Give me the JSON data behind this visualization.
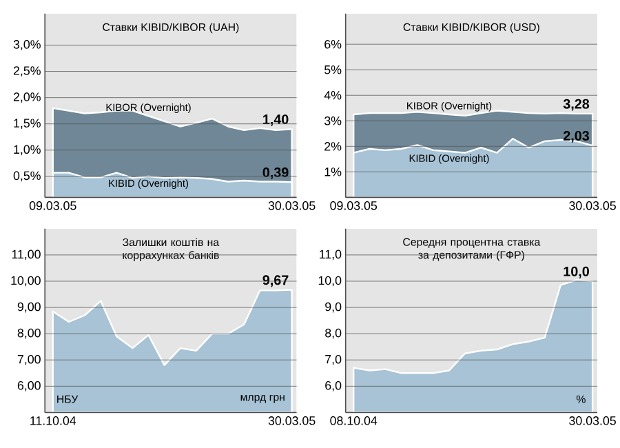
{
  "chart_data": [
    {
      "type": "area",
      "title": "Ставки KIBID/KIBOR (UAH)",
      "grid": "y",
      "categories": [
        "09.03.05",
        null,
        null,
        null,
        null,
        null,
        null,
        null,
        null,
        null,
        null,
        null,
        null,
        null,
        null,
        "30.03.05"
      ],
      "ylim": [
        0.1,
        3.6
      ],
      "yticks": [
        {
          "value": 0.5,
          "label": "0,5%"
        },
        {
          "value": 1.0,
          "label": "1,0%"
        },
        {
          "value": 1.5,
          "label": "1,5%"
        },
        {
          "value": 2.0,
          "label": "2,0%"
        },
        {
          "value": 2.5,
          "label": "2,5%"
        },
        {
          "value": 3.0,
          "label": "3,0%"
        }
      ],
      "series": [
        {
          "name": "KIBOR (Overnight)",
          "color": "#6f8796",
          "values": [
            1.8,
            1.75,
            1.7,
            1.72,
            1.75,
            1.75,
            1.65,
            1.55,
            1.45,
            1.52,
            1.6,
            1.45,
            1.38,
            1.42,
            1.38,
            1.4
          ],
          "value_labels": [
            null,
            null,
            null,
            null,
            null,
            null,
            null,
            null,
            null,
            null,
            null,
            null,
            null,
            null,
            null,
            "1,40"
          ]
        },
        {
          "name": "KIBID (Overnight)",
          "color": "#a7c3d5",
          "values": [
            0.57,
            0.57,
            0.48,
            0.48,
            0.57,
            0.47,
            0.5,
            0.47,
            0.48,
            0.47,
            0.45,
            0.4,
            0.42,
            0.4,
            0.4,
            0.39
          ],
          "value_labels": [
            null,
            null,
            null,
            null,
            null,
            null,
            null,
            null,
            null,
            null,
            null,
            null,
            null,
            null,
            null,
            "0,39"
          ]
        }
      ]
    },
    {
      "type": "area",
      "title": "Ставки KIBID/KIBOR (USD)",
      "grid": "y",
      "categories": [
        "09.03.05",
        null,
        null,
        null,
        null,
        null,
        null,
        null,
        null,
        null,
        null,
        null,
        null,
        null,
        null,
        "30.03.05"
      ],
      "ylim": [
        0,
        7.2
      ],
      "yticks": [
        {
          "value": 1,
          "label": "1%"
        },
        {
          "value": 2,
          "label": "2%"
        },
        {
          "value": 3,
          "label": "3%"
        },
        {
          "value": 4,
          "label": "4%"
        },
        {
          "value": 5,
          "label": "5%"
        },
        {
          "value": 6,
          "label": "6%"
        }
      ],
      "series": [
        {
          "name": "KIBOR (Overnight)",
          "color": "#6f8796",
          "values": [
            3.25,
            3.3,
            3.3,
            3.3,
            3.35,
            3.3,
            3.25,
            3.2,
            3.3,
            3.4,
            3.35,
            3.3,
            3.28,
            3.3,
            3.28,
            3.28
          ],
          "value_labels": [
            null,
            null,
            null,
            null,
            null,
            null,
            null,
            null,
            null,
            null,
            null,
            null,
            null,
            null,
            null,
            "3,28"
          ]
        },
        {
          "name": "KIBID (Overnight)",
          "color": "#a7c3d5",
          "values": [
            1.75,
            1.9,
            1.85,
            1.9,
            2.05,
            1.85,
            1.8,
            1.75,
            1.95,
            1.75,
            2.3,
            1.95,
            2.2,
            2.25,
            2.2,
            2.03
          ],
          "value_labels": [
            null,
            null,
            null,
            null,
            null,
            null,
            null,
            null,
            null,
            null,
            null,
            null,
            null,
            null,
            null,
            "2,03"
          ]
        }
      ]
    },
    {
      "type": "area",
      "title": "Залишки коштів на коррахунках банків",
      "grid": "y",
      "annotations": [
        "НБУ",
        "млрд грн"
      ],
      "categories": [
        "11.10.04",
        null,
        null,
        null,
        null,
        null,
        null,
        null,
        null,
        null,
        null,
        null,
        null,
        null,
        null,
        "30.03.05"
      ],
      "ylim": [
        5.0,
        12.0
      ],
      "yticks": [
        {
          "value": 6,
          "label": "6,00"
        },
        {
          "value": 7,
          "label": "7,00"
        },
        {
          "value": 8,
          "label": "8,00"
        },
        {
          "value": 9,
          "label": "9,00"
        },
        {
          "value": 10,
          "label": "10,00"
        },
        {
          "value": 11,
          "label": "11,00"
        }
      ],
      "series": [
        {
          "color": "#a7c3d5",
          "values": [
            8.85,
            8.45,
            8.7,
            9.25,
            7.9,
            7.45,
            7.95,
            6.8,
            7.45,
            7.35,
            8.0,
            8.0,
            8.35,
            9.65,
            9.65,
            9.67
          ],
          "value_labels": [
            null,
            null,
            null,
            null,
            null,
            null,
            null,
            null,
            null,
            null,
            null,
            null,
            null,
            null,
            null,
            "9,67"
          ]
        }
      ]
    },
    {
      "type": "area",
      "title": "Середня процентна ставка за депозитами (ГФР)",
      "grid": "y",
      "annotations": [
        "%"
      ],
      "categories": [
        "08.10.04",
        null,
        null,
        null,
        null,
        null,
        null,
        null,
        null,
        null,
        null,
        null,
        null,
        null,
        null,
        "30.03.05"
      ],
      "ylim": [
        5.0,
        12.0
      ],
      "yticks": [
        {
          "value": 6,
          "label": "6,0"
        },
        {
          "value": 7,
          "label": "7,0"
        },
        {
          "value": 8,
          "label": "8,0"
        },
        {
          "value": 9,
          "label": "9,0"
        },
        {
          "value": 10,
          "label": "10,0"
        },
        {
          "value": 11,
          "label": "11,0"
        }
      ],
      "series": [
        {
          "color": "#a7c3d5",
          "values": [
            6.7,
            6.6,
            6.65,
            6.5,
            6.5,
            6.5,
            6.6,
            7.25,
            7.35,
            7.4,
            7.6,
            7.7,
            7.85,
            9.85,
            10.05,
            10.0
          ],
          "value_labels": [
            null,
            null,
            null,
            null,
            null,
            null,
            null,
            null,
            null,
            null,
            null,
            null,
            null,
            null,
            null,
            "10,0"
          ]
        }
      ]
    }
  ]
}
